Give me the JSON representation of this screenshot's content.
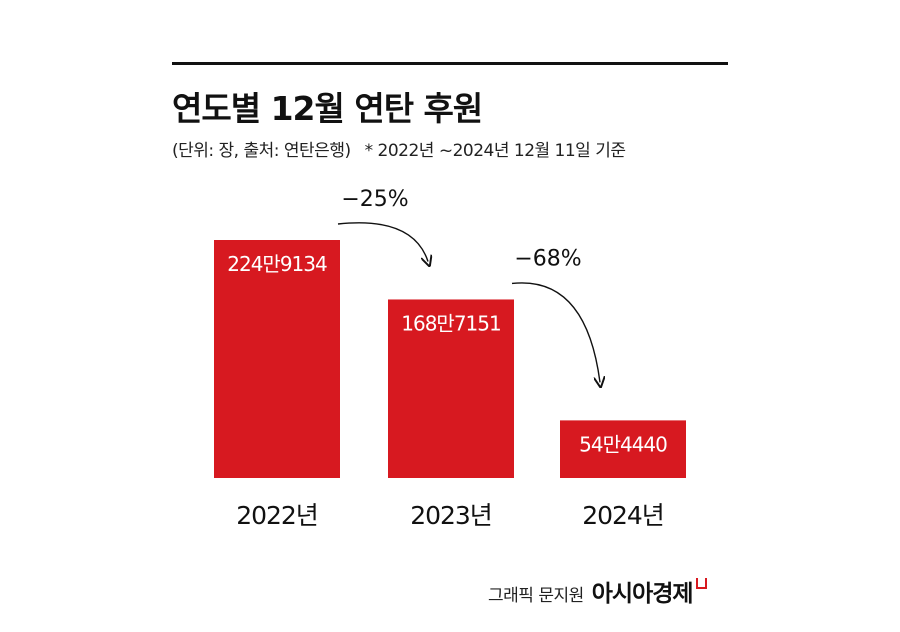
{
  "title": "연도별 12월 연탄 후원",
  "subtitle": "(단위: 장, 출처: 연탄은행)",
  "note": "* 2022년 ~2024년 12월 11일 기준",
  "footer": {
    "credit": "그래픽 문지원",
    "brand": "아시아경제"
  },
  "colors": {
    "bar": "#d71920",
    "text": "#111111"
  },
  "chart_data": {
    "type": "bar",
    "categories": [
      "2022년",
      "2023년",
      "2024년"
    ],
    "values": [
      2249134,
      1687151,
      544440
    ],
    "data_labels": [
      "224만9134",
      "168만7151",
      "54만4440"
    ],
    "changes": [
      "−25%",
      "−68%"
    ],
    "ylim": [
      0,
      2249134
    ],
    "grid": false,
    "xlabel": "",
    "ylabel": ""
  }
}
